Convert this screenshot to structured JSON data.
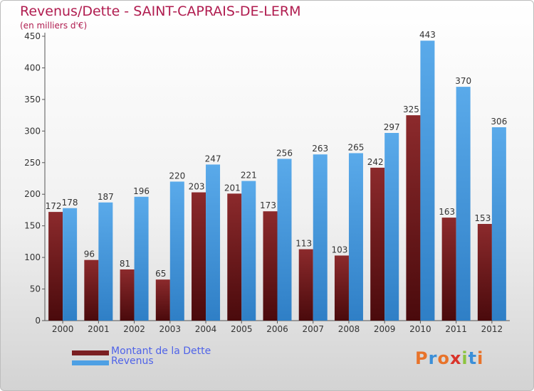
{
  "title": "Revenus/Dette - SAINT-CAPRAIS-DE-LERM",
  "subtitle": "(en milliers d'€)",
  "logo": {
    "text": "Proxiti",
    "letter_colors": [
      "#e8732a",
      "#3b8fd8",
      "#e8732a",
      "#d9342b",
      "#8cc43f",
      "#3b8fd8",
      "#e8732a"
    ]
  },
  "colors": {
    "dette": "#7b1f22",
    "revenus": "#4ea0e4"
  },
  "chart_data": {
    "type": "bar",
    "title": "Revenus/Dette - SAINT-CAPRAIS-DE-LERM",
    "ylabel": "(en milliers d'€)",
    "categories": [
      "2000",
      "2001",
      "2002",
      "2003",
      "2004",
      "2005",
      "2006",
      "2007",
      "2008",
      "2009",
      "2010",
      "2011",
      "2012"
    ],
    "series": [
      {
        "name": "Montant de la Dette",
        "values": [
          172,
          96,
          81,
          65,
          203,
          201,
          173,
          113,
          103,
          242,
          325,
          163,
          153
        ]
      },
      {
        "name": "Revenus",
        "values": [
          178,
          187,
          196,
          220,
          247,
          221,
          256,
          263,
          265,
          297,
          443,
          370,
          306
        ]
      }
    ],
    "ylim": [
      0,
      450
    ],
    "yticks": [
      0,
      50,
      100,
      150,
      200,
      250,
      300,
      350,
      400,
      450
    ],
    "grid": false,
    "legend": "bottom-left"
  }
}
